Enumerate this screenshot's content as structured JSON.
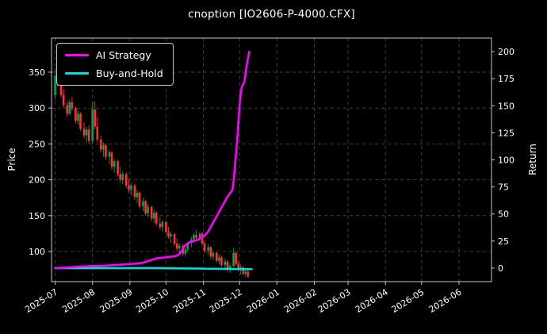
{
  "chart_data": {
    "type": "candlestick",
    "title": "cnoption [IO2606-P-4000.CFX]",
    "ylabel_left": "Price",
    "ylabel_right": "Return",
    "legend": [
      "AI Strategy",
      "Buy-and-Hold"
    ],
    "legend_position": "upper-left",
    "grid": {
      "on": true,
      "style": "dashed",
      "color": "#4f4f4f"
    },
    "colors": {
      "background": "#000000",
      "foreground": "#ffffff",
      "spine": "#c8c8c8",
      "up": "#00a650",
      "down": "#ff3232",
      "ai": "#ff00ff",
      "bh": "#00dddd"
    },
    "x_range_days": [
      -3,
      362
    ],
    "x_ticks": [
      {
        "label": "2025-07",
        "day": 0
      },
      {
        "label": "2025-08",
        "day": 31
      },
      {
        "label": "2025-09",
        "day": 62
      },
      {
        "label": "2025-10",
        "day": 92
      },
      {
        "label": "2025-11",
        "day": 123
      },
      {
        "label": "2025-12",
        "day": 153
      },
      {
        "label": "2026-01",
        "day": 184
      },
      {
        "label": "2026-02",
        "day": 215
      },
      {
        "label": "2026-03",
        "day": 243
      },
      {
        "label": "2026-04",
        "day": 274
      },
      {
        "label": "2026-05",
        "day": 304
      },
      {
        "label": "2026-06",
        "day": 335
      }
    ],
    "y_left": {
      "ticks": [
        100,
        150,
        200,
        250,
        300,
        350
      ],
      "range": [
        58,
        397.5
      ]
    },
    "y_right": {
      "ticks": [
        0,
        25,
        50,
        75,
        100,
        125,
        150,
        175,
        200
      ],
      "range": [
        -12.5,
        212.5
      ]
    },
    "candles_ohlc_by_day": [
      [
        0,
        318,
        356,
        312,
        345
      ],
      [
        2,
        345,
        352,
        330,
        336
      ],
      [
        5,
        336,
        340,
        315,
        318
      ],
      [
        7,
        318,
        326,
        300,
        304
      ],
      [
        10,
        304,
        310,
        288,
        292
      ],
      [
        12,
        292,
        312,
        290,
        308
      ],
      [
        14,
        308,
        315,
        296,
        300
      ],
      [
        17,
        300,
        302,
        278,
        282
      ],
      [
        19,
        282,
        296,
        276,
        292
      ],
      [
        21,
        292,
        294,
        268,
        271
      ],
      [
        24,
        271,
        280,
        258,
        262
      ],
      [
        26,
        262,
        274,
        252,
        270
      ],
      [
        28,
        270,
        276,
        250,
        254
      ],
      [
        31,
        254,
        308,
        250,
        298
      ],
      [
        33,
        298,
        310,
        270,
        274
      ],
      [
        35,
        274,
        288,
        252,
        256
      ],
      [
        38,
        256,
        262,
        238,
        242
      ],
      [
        40,
        242,
        252,
        232,
        248
      ],
      [
        42,
        248,
        250,
        228,
        232
      ],
      [
        45,
        232,
        242,
        222,
        238
      ],
      [
        47,
        238,
        240,
        214,
        218
      ],
      [
        49,
        218,
        230,
        210,
        226
      ],
      [
        52,
        226,
        228,
        204,
        208
      ],
      [
        54,
        208,
        218,
        196,
        200
      ],
      [
        56,
        200,
        212,
        194,
        208
      ],
      [
        59,
        208,
        210,
        188,
        192
      ],
      [
        61,
        192,
        200,
        182,
        186
      ],
      [
        63,
        186,
        196,
        178,
        192
      ],
      [
        66,
        192,
        194,
        172,
        176
      ],
      [
        68,
        176,
        186,
        168,
        182
      ],
      [
        70,
        182,
        184,
        160,
        163
      ],
      [
        73,
        163,
        175,
        156,
        170
      ],
      [
        75,
        170,
        172,
        150,
        153
      ],
      [
        77,
        153,
        166,
        148,
        162
      ],
      [
        80,
        162,
        164,
        142,
        146
      ],
      [
        82,
        146,
        158,
        140,
        154
      ],
      [
        84,
        154,
        156,
        136,
        139
      ],
      [
        87,
        139,
        148,
        130,
        134
      ],
      [
        89,
        134,
        144,
        128,
        141
      ],
      [
        92,
        141,
        143,
        124,
        127
      ],
      [
        94,
        127,
        134,
        118,
        121
      ],
      [
        96,
        121,
        128,
        112,
        124
      ],
      [
        99,
        124,
        126,
        108,
        111
      ],
      [
        101,
        111,
        118,
        100,
        104
      ],
      [
        103,
        104,
        112,
        96,
        108
      ],
      [
        106,
        108,
        110,
        94,
        97
      ],
      [
        108,
        97,
        106,
        92,
        103
      ],
      [
        110,
        103,
        114,
        100,
        112
      ],
      [
        113,
        112,
        120,
        106,
        117
      ],
      [
        115,
        117,
        126,
        112,
        123
      ],
      [
        117,
        123,
        130,
        116,
        119
      ],
      [
        120,
        119,
        128,
        114,
        125
      ],
      [
        122,
        125,
        127,
        108,
        111
      ],
      [
        124,
        111,
        116,
        98,
        101
      ],
      [
        127,
        101,
        110,
        96,
        106
      ],
      [
        129,
        106,
        108,
        90,
        93
      ],
      [
        131,
        93,
        102,
        88,
        98
      ],
      [
        134,
        98,
        100,
        84,
        87
      ],
      [
        136,
        87,
        96,
        82,
        92
      ],
      [
        138,
        92,
        94,
        78,
        81
      ],
      [
        141,
        81,
        90,
        76,
        86
      ],
      [
        143,
        86,
        88,
        72,
        75
      ],
      [
        145,
        75,
        84,
        70,
        80
      ],
      [
        148,
        80,
        105,
        78,
        98
      ],
      [
        150,
        98,
        100,
        80,
        83
      ],
      [
        152,
        83,
        86,
        72,
        74
      ],
      [
        154,
        74,
        82,
        68,
        78
      ],
      [
        156,
        78,
        80,
        66,
        69
      ],
      [
        158,
        69,
        76,
        64,
        72
      ],
      [
        160,
        72,
        74,
        63,
        65
      ]
    ],
    "series": [
      {
        "name": "AI Strategy",
        "axis": "right",
        "color_key": "ai",
        "points": [
          [
            0,
            0
          ],
          [
            8,
            0.5
          ],
          [
            16,
            1
          ],
          [
            24,
            1.5
          ],
          [
            31,
            2
          ],
          [
            38,
            2
          ],
          [
            45,
            2.5
          ],
          [
            52,
            3
          ],
          [
            59,
            3.5
          ],
          [
            66,
            4
          ],
          [
            70,
            4.5
          ],
          [
            73,
            5
          ],
          [
            76,
            6
          ],
          [
            80,
            7.5
          ],
          [
            84,
            9
          ],
          [
            88,
            9.5
          ],
          [
            92,
            10
          ],
          [
            96,
            10.5
          ],
          [
            100,
            11
          ],
          [
            103,
            13
          ],
          [
            105,
            16
          ],
          [
            107,
            20
          ],
          [
            109,
            22
          ],
          [
            112,
            24
          ],
          [
            115,
            25
          ],
          [
            118,
            26
          ],
          [
            121,
            28
          ],
          [
            124,
            30
          ],
          [
            127,
            34
          ],
          [
            130,
            40
          ],
          [
            133,
            46
          ],
          [
            135,
            50
          ],
          [
            137,
            54
          ],
          [
            139,
            58
          ],
          [
            141,
            62
          ],
          [
            143,
            66
          ],
          [
            145,
            69
          ],
          [
            147,
            72
          ],
          [
            148,
            80
          ],
          [
            149,
            92
          ],
          [
            150,
            105
          ],
          [
            151,
            118
          ],
          [
            152,
            135
          ],
          [
            153,
            150
          ],
          [
            154,
            162
          ],
          [
            155,
            168
          ],
          [
            156,
            170
          ],
          [
            157,
            172
          ],
          [
            158,
            180
          ],
          [
            159,
            188
          ],
          [
            160,
            194
          ],
          [
            161,
            200
          ]
        ]
      },
      {
        "name": "Buy-and-Hold",
        "axis": "right",
        "color_key": "bh",
        "points": [
          [
            0,
            0
          ],
          [
            40,
            0
          ],
          [
            80,
            0
          ],
          [
            120,
            -0.5
          ],
          [
            163,
            -1
          ]
        ]
      }
    ]
  }
}
